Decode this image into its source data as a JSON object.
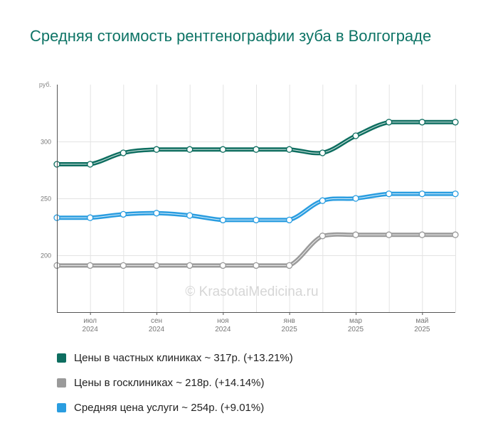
{
  "title": "Средняя стоимость рентгенографии зуба в Волгограде",
  "watermark": "© KrasotaiMedicina.ru",
  "chart_data": {
    "type": "line",
    "y_unit": "руб.",
    "ylim": [
      150,
      350
    ],
    "yticks": [
      200,
      250,
      300
    ],
    "grid": true,
    "legend_position": "bottom",
    "x": [
      "2024-05",
      "2024-06",
      "2024-07",
      "2024-08",
      "2024-09",
      "2024-10",
      "2024-11",
      "2024-12",
      "2025-01",
      "2025-02",
      "2025-03",
      "2025-04",
      "2025-05"
    ],
    "x_tick_labels": [
      {
        "month": "июл",
        "year": "2024"
      },
      {
        "month": "сен",
        "year": "2024"
      },
      {
        "month": "ноя",
        "year": "2024"
      },
      {
        "month": "янв",
        "year": "2025"
      },
      {
        "month": "мар",
        "year": "2025"
      },
      {
        "month": "май",
        "year": "2025"
      }
    ],
    "series": [
      {
        "name": "Цены в частных клиниках ~ 317р. (+13.21%)",
        "color": "#0e6e60",
        "values": [
          280,
          280,
          290,
          293,
          293,
          293,
          293,
          293,
          290,
          305,
          317,
          317,
          317
        ]
      },
      {
        "name": "Цены в госклиниках ~ 218р. (+14.14%)",
        "color": "#9a9a9a",
        "values": [
          191,
          191,
          191,
          191,
          191,
          191,
          191,
          191,
          217,
          218,
          218,
          218,
          218
        ]
      },
      {
        "name": "Средняя цена услуги ~ 254р. (+9.01%)",
        "color": "#2a9de0",
        "values": [
          233,
          233,
          236,
          237,
          235,
          231,
          231,
          231,
          248,
          250,
          254,
          254,
          254
        ]
      }
    ]
  }
}
